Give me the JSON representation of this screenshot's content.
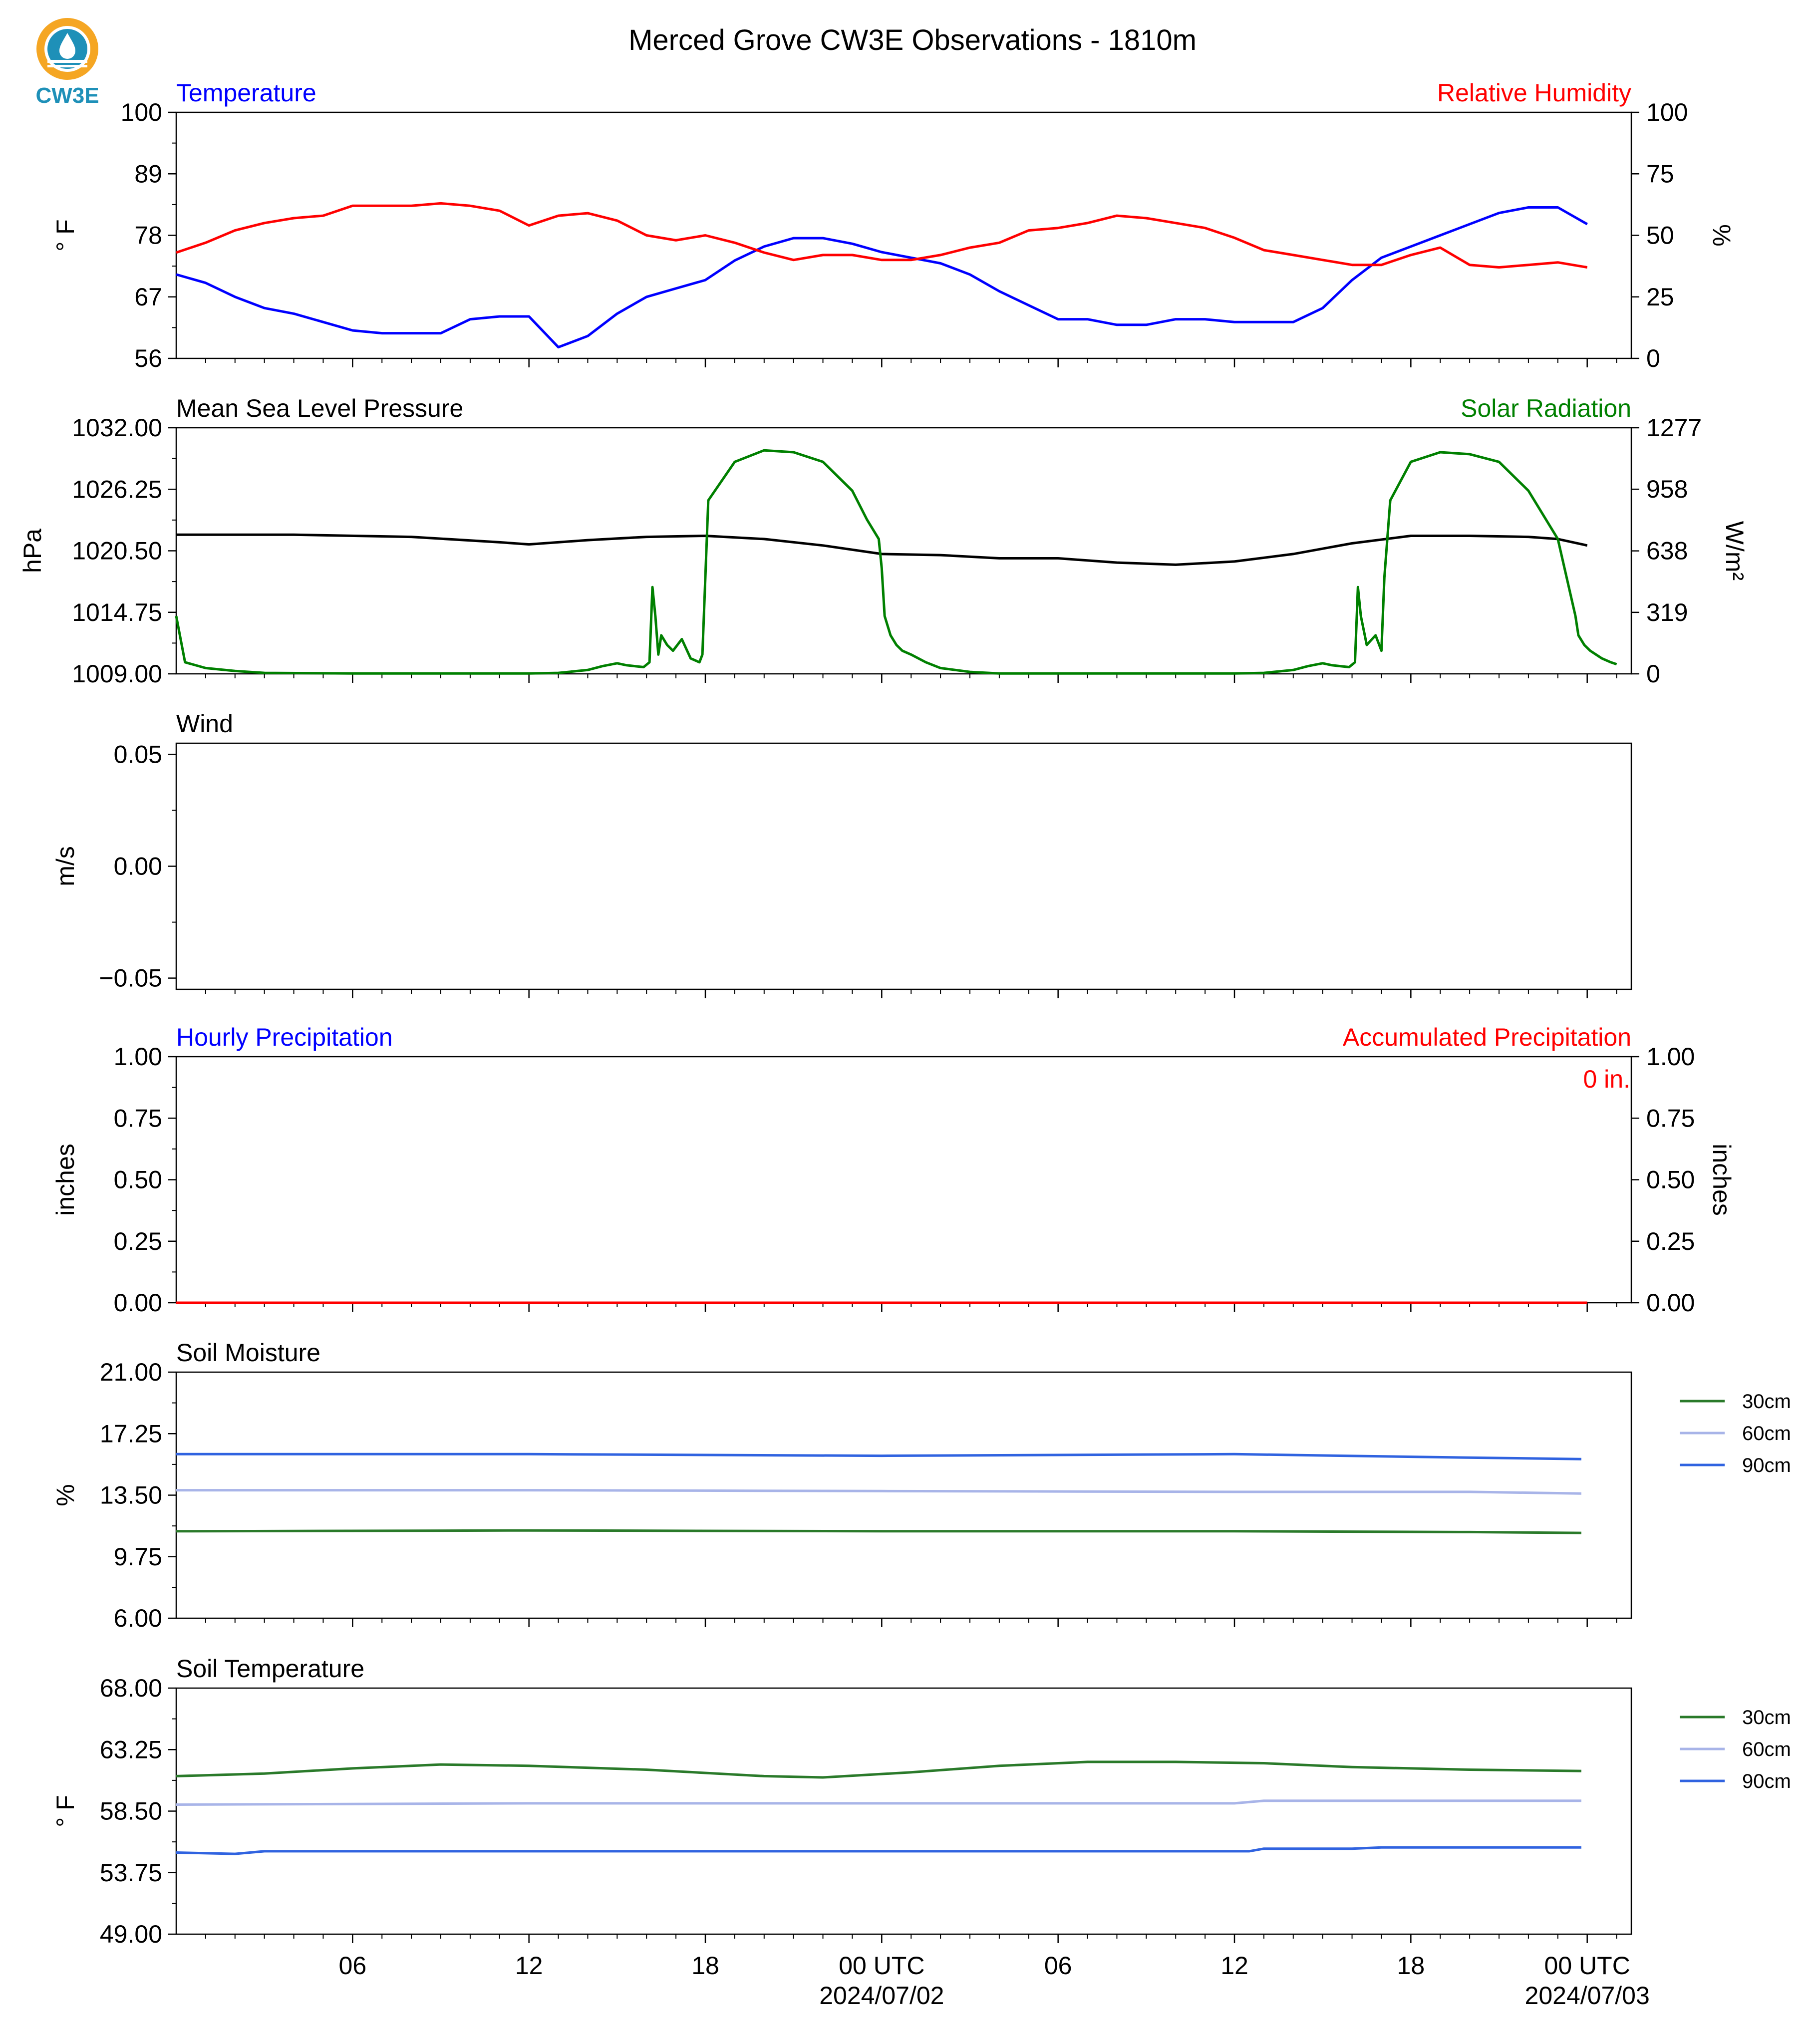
{
  "title": "Merced Grove CW3E Observations - 1810m",
  "logo": {
    "text": "CW3E",
    "icon": "cw3e-water-drop-logo",
    "colors": [
      "#f5a623",
      "#1e90b8"
    ]
  },
  "x_axis": {
    "start": "2024-07-01 00:00 UTC",
    "end": "2024-07-03 00:00 UTC",
    "tick_labels": [
      "06",
      "12",
      "18",
      "00 UTC",
      "06",
      "12",
      "18",
      "00 UTC"
    ],
    "date_labels": [
      "2024/07/02",
      "2024/07/03"
    ]
  },
  "chart_data": [
    {
      "type": "line",
      "left_title": "Temperature",
      "right_title": "Relative Humidity",
      "ylabel": "° F",
      "ylabel_right": "%",
      "ylim": [
        56,
        100
      ],
      "ylim_right": [
        0,
        100
      ],
      "yticks": [
        "56",
        "67",
        "78",
        "89",
        "100"
      ],
      "yticks_right": [
        "0",
        "25",
        "50",
        "75",
        "100"
      ],
      "colors": {
        "left_title": "#0000ff",
        "right_title": "#ff0000"
      },
      "series": [
        {
          "axis": "left",
          "color": "#0000ff",
          "x_hours": [
            0,
            1,
            2,
            3,
            4,
            5,
            6,
            7,
            8,
            9,
            10,
            11,
            12,
            13,
            14,
            15,
            16,
            17,
            18,
            19,
            20,
            21,
            22,
            23,
            24,
            25,
            26,
            27,
            28,
            29,
            30,
            31,
            32,
            33,
            34,
            35,
            36,
            37,
            38,
            39,
            40,
            41,
            42,
            43,
            44,
            45,
            46,
            47,
            48
          ],
          "values": [
            71,
            69.5,
            67,
            65,
            64,
            62.5,
            61,
            60.5,
            60.5,
            60.5,
            63,
            63.5,
            63.5,
            58,
            60,
            64,
            67,
            68.5,
            70,
            73.5,
            76,
            77.5,
            77.5,
            76.5,
            75,
            74,
            73,
            71,
            68,
            65.5,
            63,
            63,
            62,
            62,
            63,
            63,
            62.5,
            62.5,
            62.5,
            65,
            70,
            74,
            76,
            78,
            80,
            82,
            83,
            83,
            80
          ]
        },
        {
          "axis": "right",
          "color": "#ff0000",
          "x_hours": [
            0,
            1,
            2,
            3,
            4,
            5,
            6,
            7,
            8,
            9,
            10,
            11,
            12,
            13,
            14,
            15,
            16,
            17,
            18,
            19,
            20,
            21,
            22,
            23,
            24,
            25,
            26,
            27,
            28,
            29,
            30,
            31,
            32,
            33,
            34,
            35,
            36,
            37,
            38,
            39,
            40,
            41,
            42,
            43,
            44,
            45,
            46,
            47,
            48
          ],
          "values": [
            43,
            47,
            52,
            55,
            57,
            58,
            62,
            62,
            62,
            63,
            62,
            60,
            54,
            58,
            59,
            56,
            50,
            48,
            50,
            47,
            43,
            40,
            42,
            42,
            40,
            40,
            42,
            45,
            47,
            52,
            53,
            55,
            58,
            57,
            55,
            53,
            49,
            44,
            42,
            40,
            38,
            38,
            42,
            45,
            38,
            37,
            38,
            39,
            37
          ]
        }
      ]
    },
    {
      "type": "line",
      "left_title": "Mean Sea Level Pressure",
      "right_title": "Solar Radiation",
      "ylabel": "hPa",
      "ylabel_right": "W/m²",
      "ylim": [
        1009,
        1032
      ],
      "ylim_right": [
        0,
        1277
      ],
      "yticks": [
        "1009.00",
        "1014.75",
        "1020.50",
        "1026.25",
        "1032.00"
      ],
      "yticks_right": [
        "0",
        "319",
        "638",
        "958",
        "1277"
      ],
      "colors": {
        "left_title": "#000000",
        "right_title": "#008000"
      },
      "series": [
        {
          "axis": "left",
          "color": "#000000",
          "x_hours": [
            0,
            4,
            8,
            11,
            12,
            14,
            16,
            18,
            20,
            22,
            24,
            26,
            28,
            30,
            32,
            33,
            34,
            36,
            38,
            40,
            42,
            44,
            46,
            47,
            48
          ],
          "values": [
            1022,
            1022,
            1021.8,
            1021.3,
            1021.1,
            1021.5,
            1021.8,
            1021.9,
            1021.6,
            1021,
            1020.2,
            1020.1,
            1019.8,
            1019.8,
            1019.4,
            1019.3,
            1019.2,
            1019.5,
            1020.2,
            1021.2,
            1021.9,
            1021.9,
            1021.8,
            1021.6,
            1021
          ]
        },
        {
          "axis": "right",
          "color": "#008000",
          "x_hours": [
            0,
            0.3,
            1,
            2,
            3,
            6,
            9,
            12,
            13,
            14,
            14.5,
            15,
            15.3,
            15.6,
            15.9,
            16.1,
            16.2,
            16.3,
            16.4,
            16.5,
            16.7,
            16.9,
            17.2,
            17.5,
            17.8,
            17.9,
            18,
            18.1,
            19,
            20,
            21,
            22,
            23,
            23.5,
            23.9,
            24,
            24.1,
            24.3,
            24.5,
            24.7,
            25,
            25.5,
            26,
            27,
            28,
            30,
            33,
            36,
            37,
            38,
            38.5,
            39,
            39.3,
            39.6,
            39.9,
            40.1,
            40.2,
            40.3,
            40.5,
            40.8,
            41,
            41.1,
            41.3,
            42,
            43,
            44,
            45,
            46,
            47,
            47.6,
            47.7,
            47.9,
            48.1,
            48.3,
            48.5,
            48.8,
            49
          ],
          "values": [
            300,
            60,
            30,
            15,
            5,
            2,
            2,
            2,
            5,
            20,
            40,
            55,
            45,
            40,
            35,
            60,
            450,
            300,
            100,
            200,
            150,
            120,
            180,
            80,
            60,
            100,
            500,
            900,
            1100,
            1160,
            1150,
            1100,
            950,
            800,
            700,
            550,
            300,
            200,
            150,
            120,
            100,
            60,
            30,
            10,
            2,
            2,
            2,
            2,
            5,
            20,
            40,
            55,
            45,
            40,
            35,
            60,
            450,
            300,
            150,
            200,
            120,
            500,
            900,
            1100,
            1150,
            1140,
            1100,
            950,
            700,
            300,
            200,
            150,
            120,
            100,
            80,
            60,
            50
          ]
        }
      ]
    },
    {
      "type": "line",
      "left_title": "Wind",
      "ylabel": "m/s",
      "ylim": [
        -0.055,
        0.055
      ],
      "yticks": [
        "−0.05",
        "0.00",
        "0.05"
      ],
      "series": []
    },
    {
      "type": "line",
      "left_title": "Hourly Precipitation",
      "right_title": "Accumulated Precipitation",
      "ylabel": "inches",
      "ylabel_right": "inches",
      "ylim": [
        0,
        1
      ],
      "ylim_right": [
        0,
        1
      ],
      "yticks": [
        "0.00",
        "0.25",
        "0.50",
        "0.75",
        "1.00"
      ],
      "yticks_right": [
        "0.00",
        "0.25",
        "0.50",
        "0.75",
        "1.00"
      ],
      "annotation": "0 in.",
      "colors": {
        "left_title": "#0000ff",
        "right_title": "#ff0000"
      },
      "series": [
        {
          "axis": "left",
          "color": "#0000ff",
          "x_hours": [
            0,
            48
          ],
          "values": [
            0,
            0
          ]
        },
        {
          "axis": "right",
          "color": "#ff0000",
          "x_hours": [
            0,
            48
          ],
          "values": [
            0,
            0
          ]
        }
      ]
    },
    {
      "type": "line",
      "left_title": "Soil Moisture",
      "ylabel": "%",
      "ylim": [
        6,
        21
      ],
      "yticks": [
        "6.00",
        "9.75",
        "13.50",
        "17.25",
        "21.00"
      ],
      "legend_position": "right",
      "series": [
        {
          "name": "30cm",
          "color": "#2a7a2a",
          "x_hours": [
            0,
            12,
            24,
            36,
            44,
            47.8
          ],
          "values": [
            11.3,
            11.35,
            11.3,
            11.3,
            11.25,
            11.2
          ]
        },
        {
          "name": "60cm",
          "color": "#a8b4e8",
          "x_hours": [
            0,
            12,
            24,
            36,
            44,
            47.8
          ],
          "values": [
            13.8,
            13.8,
            13.75,
            13.7,
            13.7,
            13.6
          ]
        },
        {
          "name": "90cm",
          "color": "#3063e0",
          "x_hours": [
            0,
            12,
            24,
            36,
            43.5,
            47.8
          ],
          "values": [
            16,
            16,
            15.9,
            16,
            15.8,
            15.7
          ]
        }
      ]
    },
    {
      "type": "line",
      "left_title": "Soil Temperature",
      "ylabel": "° F",
      "ylim": [
        49,
        68
      ],
      "yticks": [
        "49.00",
        "53.75",
        "58.50",
        "63.25",
        "68.00"
      ],
      "legend_position": "right",
      "series": [
        {
          "name": "30cm",
          "color": "#2a7a2a",
          "x_hours": [
            0,
            3,
            6,
            9,
            12,
            16,
            20,
            22,
            25,
            28,
            31,
            34,
            37,
            40,
            44,
            47.8
          ],
          "values": [
            61.2,
            61.4,
            61.8,
            62.1,
            62,
            61.7,
            61.2,
            61.1,
            61.5,
            62,
            62.3,
            62.3,
            62.2,
            61.9,
            61.7,
            61.6
          ]
        },
        {
          "name": "60cm",
          "color": "#a8b4e8",
          "x_hours": [
            0,
            12,
            24,
            36,
            37,
            47.8
          ],
          "values": [
            59,
            59.1,
            59.1,
            59.1,
            59.3,
            59.3
          ]
        },
        {
          "name": "90cm",
          "color": "#3063e0",
          "x_hours": [
            0,
            2,
            3,
            12,
            24,
            36.5,
            37,
            40,
            41,
            47.8
          ],
          "values": [
            55.3,
            55.2,
            55.4,
            55.4,
            55.4,
            55.4,
            55.6,
            55.6,
            55.7,
            55.7
          ]
        }
      ]
    }
  ]
}
